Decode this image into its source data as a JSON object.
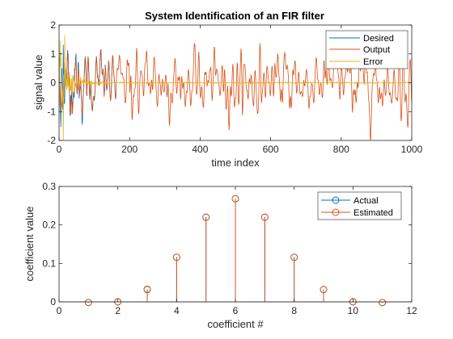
{
  "chart_data": [
    {
      "type": "line",
      "title": "System Identification of an FIR filter",
      "xlabel": "time index",
      "ylabel": "signal value",
      "xlim": [
        0,
        1000
      ],
      "ylim": [
        -2,
        2
      ],
      "xticks": [
        0,
        200,
        400,
        600,
        800,
        1000
      ],
      "yticks": [
        -2,
        -1,
        0,
        1,
        2
      ],
      "legend": "top-right",
      "grid": false,
      "n_samples": 1000,
      "series": [
        {
          "name": "Desired",
          "color": "#0072BD",
          "description": "adaptive output approaching the filter output; visible as transient during the first ~150 samples"
        },
        {
          "name": "Output",
          "color": "#D95319",
          "amplitude_range": [
            -1.5,
            1.3
          ],
          "description": "noisy output of the FIR filter across all 1000 samples"
        },
        {
          "name": "Error",
          "color": "#EDB120",
          "peak": 1.65,
          "peak_at": 15,
          "description": "error signal decaying to near zero after ~100 samples"
        }
      ]
    },
    {
      "type": "stem",
      "xlabel": "coefficient #",
      "ylabel": "coefficient value",
      "xlim": [
        0,
        12
      ],
      "ylim": [
        0,
        0.3
      ],
      "xticks": [
        0,
        2,
        4,
        6,
        8,
        10,
        12
      ],
      "yticks": [
        0,
        0.1,
        0.2,
        0.3
      ],
      "legend": "top-right",
      "grid": false,
      "series": [
        {
          "name": "Actual",
          "color": "#0072BD",
          "x": [
            1,
            2,
            3,
            4,
            5,
            6,
            7,
            8,
            9,
            10,
            11
          ],
          "values": [
            -0.0016,
            0,
            0.032,
            0.116,
            0.22,
            0.268,
            0.22,
            0.116,
            0.032,
            0,
            -0.0016
          ]
        },
        {
          "name": "Estimated",
          "color": "#D95319",
          "x": [
            1,
            2,
            3,
            4,
            5,
            6,
            7,
            8,
            9,
            10,
            11
          ],
          "values": [
            -0.0016,
            0.0004,
            0.033,
            0.116,
            0.22,
            0.268,
            0.22,
            0.116,
            0.032,
            0.0004,
            -0.0016
          ]
        }
      ]
    }
  ]
}
